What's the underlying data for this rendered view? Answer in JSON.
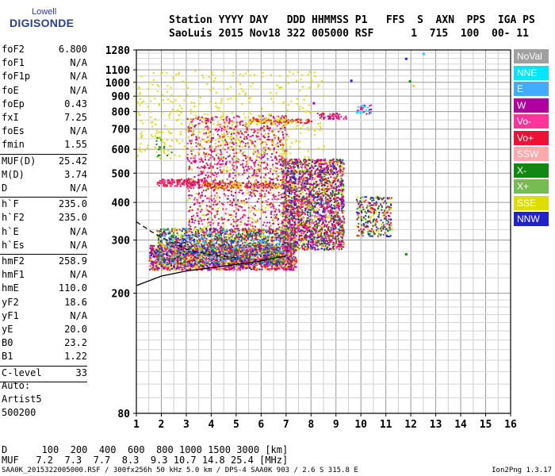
{
  "logo": {
    "line1": "Lowell",
    "line2": "DIGISONDE"
  },
  "header": {
    "line1": "Station YYYY DAY   DDD HHMMSS P1   FFS  S  AXN  PPS  IGA PS",
    "line2": "SaoLuis 2015 Nov18 322 005000 RSF      1  715  100  00- 11"
  },
  "params": [
    {
      "name": "foF2",
      "value": "6.800",
      "sep_after": false
    },
    {
      "name": "foF1",
      "value": "N/A",
      "sep_after": false
    },
    {
      "name": "foF1p",
      "value": "N/A",
      "sep_after": false
    },
    {
      "name": "foE",
      "value": "N/A",
      "sep_after": false
    },
    {
      "name": "foEp",
      "value": "0.43",
      "sep_after": false
    },
    {
      "name": "fxI",
      "value": "7.25",
      "sep_after": false
    },
    {
      "name": "foEs",
      "value": "N/A",
      "sep_after": false
    },
    {
      "name": "fmin",
      "value": "1.55",
      "sep_after": true
    },
    {
      "name": "MUF(D)",
      "value": "25.42",
      "sep_after": false
    },
    {
      "name": "M(D)",
      "value": "3.74",
      "sep_after": false
    },
    {
      "name": "D",
      "value": "N/A",
      "sep_after": true
    },
    {
      "name": "h`F",
      "value": "235.0",
      "sep_after": false
    },
    {
      "name": "h`F2",
      "value": "235.0",
      "sep_after": false
    },
    {
      "name": "h`E",
      "value": "N/A",
      "sep_after": false
    },
    {
      "name": "h`Es",
      "value": "N/A",
      "sep_after": true
    },
    {
      "name": "hmF2",
      "value": "258.9",
      "sep_after": false
    },
    {
      "name": "hmF1",
      "value": "N/A",
      "sep_after": false
    },
    {
      "name": "hmE",
      "value": "110.0",
      "sep_after": false
    },
    {
      "name": "yF2",
      "value": "18.6",
      "sep_after": false
    },
    {
      "name": "yF1",
      "value": "N/A",
      "sep_after": false
    },
    {
      "name": "yE",
      "value": "20.0",
      "sep_after": false
    },
    {
      "name": "B0",
      "value": "23.2",
      "sep_after": false
    },
    {
      "name": "B1",
      "value": "1.22",
      "sep_after": true
    },
    {
      "name": "C-level",
      "value": "33",
      "sep_after": true
    }
  ],
  "auto": {
    "line1": "Auto:",
    "line2": "Artist5",
    "line3": "500200"
  },
  "legend": [
    {
      "label": "NoVal",
      "color": "#a0a0a0"
    },
    {
      "label": "NNE",
      "color": "#00e5ff"
    },
    {
      "label": "E",
      "color": "#44aaff"
    },
    {
      "label": "W",
      "color": "#b000a0"
    },
    {
      "label": "Vo-",
      "color": "#ff3399"
    },
    {
      "label": "Vo+",
      "color": "#ee1133"
    },
    {
      "label": "SSW",
      "color": "#ffaaaa"
    },
    {
      "label": "X-",
      "color": "#118811"
    },
    {
      "label": "X+",
      "color": "#77bb55"
    },
    {
      "label": "SSE",
      "color": "#dddd00"
    },
    {
      "label": "NNW",
      "color": "#2222cc"
    }
  ],
  "bottom": {
    "d_line": "D      100  200  400  600  800 1000 1500 3000 [km]",
    "muf_line": "MUF   7.2  7.3  7.7  8.3  9.3 10.7 14.8 25.4 [MHz]"
  },
  "footer": {
    "left": "SAA0K_2015322005000.RSF / 300fx256h 50 kHz 5.0 km / DPS-4 SAA0K 903 / 2.6 S 315.8 E",
    "right": "Ion2Png 1.3.17"
  },
  "chart_data": {
    "type": "scatter",
    "title": "",
    "xlabel": "",
    "ylabel": "",
    "x_range": [
      1,
      16
    ],
    "y_range": [
      80,
      1280
    ],
    "y_scale": "log",
    "x_ticks": [
      "1",
      "2",
      "3",
      "4",
      "5",
      "6",
      "7",
      "8",
      "9",
      "10",
      "11",
      "12",
      "13",
      "14",
      "15",
      "16"
    ],
    "y_ticks": [
      {
        "value": 80,
        "label": "80"
      },
      {
        "value": 200,
        "label": "200"
      },
      {
        "value": 300,
        "label": "300"
      },
      {
        "value": 400,
        "label": "400"
      },
      {
        "value": 500,
        "label": "500"
      },
      {
        "value": 600,
        "label": "600"
      },
      {
        "value": 700,
        "label": "700"
      },
      {
        "value": 800,
        "label": "800"
      },
      {
        "value": 900,
        "label": "900"
      },
      {
        "value": 1000,
        "label": "1000"
      },
      {
        "value": 1100,
        "label": "1100"
      },
      {
        "value": 1280,
        "label": "1280"
      }
    ],
    "grid": true,
    "clusters": [
      {
        "x": [
          1.5,
          7.4
        ],
        "y": [
          240,
          290
        ],
        "density": 1.0,
        "colors": [
          "#ee1133",
          "#ff3399",
          "#b000a0",
          "#2222cc",
          "#dddd00"
        ]
      },
      {
        "x": [
          1.8,
          7.2
        ],
        "y": [
          250,
          330
        ],
        "density": 0.7,
        "colors": [
          "#dddd00",
          "#2222cc",
          "#ee1133",
          "#118811",
          "#44aaff"
        ]
      },
      {
        "x": [
          1.8,
          3.8
        ],
        "y": [
          455,
          480
        ],
        "density": 0.9,
        "colors": [
          "#ee1133",
          "#ff3399"
        ]
      },
      {
        "x": [
          3.8,
          7.4
        ],
        "y": [
          448,
          470
        ],
        "density": 0.8,
        "colors": [
          "#dddd00",
          "#ee1133"
        ]
      },
      {
        "x": [
          3.0,
          7.0
        ],
        "y": [
          320,
          780
        ],
        "density": 0.22,
        "colors": [
          "#b000a0",
          "#ff3399",
          "#dddd00",
          "#ee1133"
        ]
      },
      {
        "x": [
          5.5,
          8.0
        ],
        "y": [
          735,
          760
        ],
        "density": 0.7,
        "colors": [
          "#dddd00",
          "#ee1133"
        ]
      },
      {
        "x": [
          6.8,
          9.3
        ],
        "y": [
          280,
          560
        ],
        "density": 0.75,
        "colors": [
          "#ee1133",
          "#2222cc",
          "#b000a0",
          "#ff3399",
          "#118811",
          "#dddd00"
        ]
      },
      {
        "x": [
          8.2,
          9.4
        ],
        "y": [
          760,
          795
        ],
        "density": 0.6,
        "colors": [
          "#ff3399",
          "#b000a0",
          "#ee1133"
        ]
      },
      {
        "x": [
          9.8,
          10.4
        ],
        "y": [
          790,
          845
        ],
        "density": 0.5,
        "colors": [
          "#ff3399",
          "#b000a0",
          "#00e5ff"
        ]
      },
      {
        "x": [
          9.8,
          11.2
        ],
        "y": [
          310,
          420
        ],
        "density": 0.4,
        "colors": [
          "#ee1133",
          "#dddd00",
          "#2222cc",
          "#118811"
        ]
      },
      {
        "x": [
          1.7,
          2.4
        ],
        "y": [
          560,
          720
        ],
        "density": 0.12,
        "colors": [
          "#dddd00",
          "#118811"
        ]
      },
      {
        "x": [
          1.0,
          8.5
        ],
        "y": [
          560,
          1100
        ],
        "density": 0.04,
        "colors": [
          "#dddd00"
        ]
      }
    ],
    "curves": [
      {
        "name": "solid",
        "color": "#000000",
        "dash": false,
        "points": [
          [
            1.0,
            212
          ],
          [
            2.0,
            228
          ],
          [
            3.0,
            237
          ],
          [
            4.0,
            243
          ],
          [
            5.0,
            249
          ],
          [
            6.0,
            256
          ],
          [
            7.0,
            266
          ]
        ]
      },
      {
        "name": "dashed",
        "color": "#000000",
        "dash": true,
        "points": [
          [
            1.0,
            345
          ],
          [
            1.6,
            320
          ],
          [
            2.3,
            298
          ],
          [
            3.0,
            280
          ],
          [
            4.0,
            268
          ],
          [
            5.0,
            262
          ]
        ]
      }
    ],
    "isolated_points": [
      {
        "x": 11.8,
        "y": 1200,
        "color": "#2222cc"
      },
      {
        "x": 12.5,
        "y": 1245,
        "color": "#00e5ff"
      },
      {
        "x": 9.6,
        "y": 1015,
        "color": "#2222cc"
      },
      {
        "x": 11.95,
        "y": 1010,
        "color": "#118811"
      },
      {
        "x": 12.1,
        "y": 975,
        "color": "#dddd00"
      },
      {
        "x": 8.1,
        "y": 855,
        "color": "#b000a0"
      },
      {
        "x": 11.8,
        "y": 270,
        "color": "#118811"
      }
    ]
  }
}
